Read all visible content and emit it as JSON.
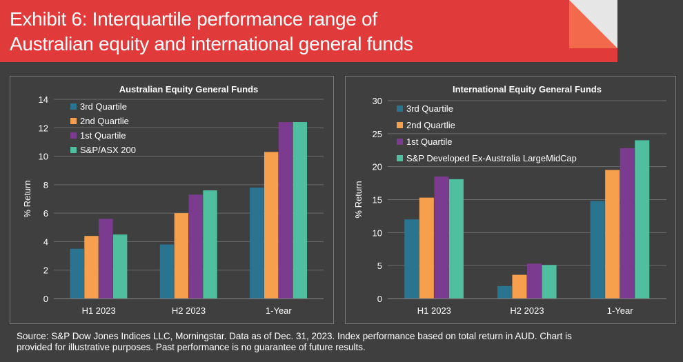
{
  "header": {
    "title_line_1": "Exhibit 6: Interquartile performance range of",
    "title_line_2": "Australian equity and international general funds",
    "bar_color": "#e03a3a",
    "corner_color": "#f26a4b"
  },
  "footer": {
    "source_line_1": "Source: S&P Dow Jones Indices LLC, Morningstar.  Data as of Dec. 31, 2023.  Index performance based on total return in AUD.  Chart is",
    "source_line_2": "provided for illustrative purposes.  Past performance is no guarantee of future results."
  },
  "chart_data": [
    {
      "type": "bar",
      "title": "Australian Equity General Funds",
      "ylabel": "% Return",
      "ylim": [
        0,
        14
      ],
      "yticks": [
        0,
        2,
        4,
        6,
        8,
        10,
        12,
        14
      ],
      "categories": [
        "H1 2023",
        "H2 2023",
        "1-Year"
      ],
      "legend_position": "top-left",
      "grid": true,
      "series": [
        {
          "name": "3rd Quartile",
          "color": "#2a7490",
          "values": [
            3.5,
            3.8,
            7.8
          ]
        },
        {
          "name": "2nd Quartlie",
          "color": "#f6a04d",
          "values": [
            4.4,
            6.0,
            10.3
          ]
        },
        {
          "name": "1st Quartile",
          "color": "#7b3b8e",
          "values": [
            5.6,
            7.3,
            12.4
          ]
        },
        {
          "name": "S&P/ASX 200",
          "color": "#4fbf9f",
          "values": [
            4.5,
            7.6,
            12.4
          ]
        }
      ]
    },
    {
      "type": "bar",
      "title": "International Equity General Funds",
      "ylabel": "% Return",
      "ylim": [
        0,
        30
      ],
      "yticks": [
        0,
        5,
        10,
        15,
        20,
        25,
        30
      ],
      "categories": [
        "H1 2023",
        "H2 2023",
        "1-Year"
      ],
      "legend_position": "top-left",
      "grid": true,
      "series": [
        {
          "name": "3rd Quartile",
          "color": "#2a7490",
          "values": [
            12.0,
            1.9,
            14.8
          ]
        },
        {
          "name": "2nd Quartlie",
          "color": "#f6a04d",
          "values": [
            15.3,
            3.6,
            19.5
          ]
        },
        {
          "name": "1st Quartile",
          "color": "#7b3b8e",
          "values": [
            18.5,
            5.3,
            22.8
          ]
        },
        {
          "name": "S&P Developed Ex-Australia LargeMidCap",
          "color": "#4fbf9f",
          "values": [
            18.1,
            5.1,
            24.0
          ]
        }
      ]
    }
  ]
}
